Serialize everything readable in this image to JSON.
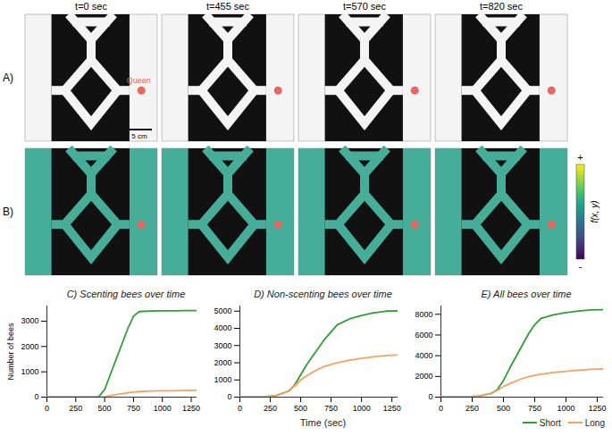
{
  "figure": {
    "time_labels": [
      "t=0 sec",
      "t=455 sec",
      "t=570 sec",
      "t=820 sec"
    ],
    "row_labels": [
      "A)",
      "B)"
    ],
    "queen_label": "Queen",
    "scale_bar_label": "5 cm",
    "colorbar": {
      "label": "f(x, y)",
      "max_label": "+",
      "min_label": "-"
    }
  },
  "chart_data": [
    {
      "type": "line",
      "title": "C) Scenting bees over time",
      "ylabel": "Number of bees",
      "x": [
        0,
        100,
        200,
        300,
        400,
        450,
        500,
        550,
        600,
        650,
        700,
        750,
        800,
        900,
        1000,
        1100,
        1200,
        1300
      ],
      "series": [
        {
          "name": "Short",
          "color": "#2e9e36",
          "values": [
            0,
            0,
            0,
            0,
            0,
            20,
            300,
            900,
            1500,
            2100,
            2700,
            3200,
            3380,
            3400,
            3410,
            3410,
            3420,
            3420
          ]
        },
        {
          "name": "Long",
          "color": "#f8a060",
          "values": [
            0,
            0,
            0,
            0,
            0,
            0,
            20,
            60,
            100,
            140,
            170,
            200,
            220,
            240,
            250,
            255,
            260,
            270
          ]
        }
      ],
      "xlim": [
        0,
        1300
      ],
      "xticks": [
        0,
        250,
        500,
        750,
        1000,
        1250
      ],
      "ylim": [
        0,
        3600
      ],
      "yticks": [
        0,
        1000,
        2000,
        3000
      ]
    },
    {
      "type": "line",
      "title": "D) Non-scenting bees over time",
      "xlabel": "Time (sec)",
      "x": [
        0,
        100,
        200,
        300,
        400,
        450,
        500,
        550,
        600,
        650,
        700,
        750,
        800,
        900,
        1000,
        1100,
        1200,
        1300
      ],
      "series": [
        {
          "name": "Short",
          "color": "#2e9e36",
          "values": [
            0,
            0,
            20,
            100,
            350,
            700,
            1300,
            1900,
            2400,
            2900,
            3400,
            3800,
            4200,
            4550,
            4750,
            4900,
            5000,
            5020
          ]
        },
        {
          "name": "Long",
          "color": "#f8a060",
          "values": [
            0,
            0,
            20,
            100,
            350,
            650,
            1000,
            1250,
            1450,
            1650,
            1800,
            1900,
            2000,
            2150,
            2250,
            2350,
            2420,
            2450
          ]
        }
      ],
      "xlim": [
        0,
        1300
      ],
      "xticks": [
        0,
        250,
        500,
        750,
        1000,
        1250
      ],
      "ylim": [
        0,
        5300
      ],
      "yticks": [
        0,
        1000,
        2000,
        3000,
        4000,
        5000
      ]
    },
    {
      "type": "line",
      "title": "E) All bees over time",
      "legend": "bottom right",
      "x": [
        0,
        100,
        200,
        300,
        400,
        450,
        500,
        550,
        600,
        650,
        700,
        750,
        800,
        900,
        1000,
        1100,
        1200,
        1300
      ],
      "series": [
        {
          "name": "Short",
          "color": "#2e9e36",
          "values": [
            0,
            0,
            20,
            100,
            350,
            720,
            1600,
            2800,
            3900,
            5000,
            6100,
            7000,
            7600,
            7950,
            8160,
            8310,
            8420,
            8440
          ]
        },
        {
          "name": "Long",
          "color": "#f8a060",
          "values": [
            0,
            0,
            20,
            100,
            350,
            650,
            1020,
            1310,
            1550,
            1790,
            1970,
            2100,
            2220,
            2390,
            2500,
            2605,
            2680,
            2720
          ]
        }
      ],
      "xlim": [
        0,
        1300
      ],
      "xticks": [
        0,
        250,
        500,
        750,
        1000,
        1250
      ],
      "ylim": [
        0,
        8800
      ],
      "yticks": [
        0,
        2000,
        4000,
        6000,
        8000
      ]
    }
  ]
}
